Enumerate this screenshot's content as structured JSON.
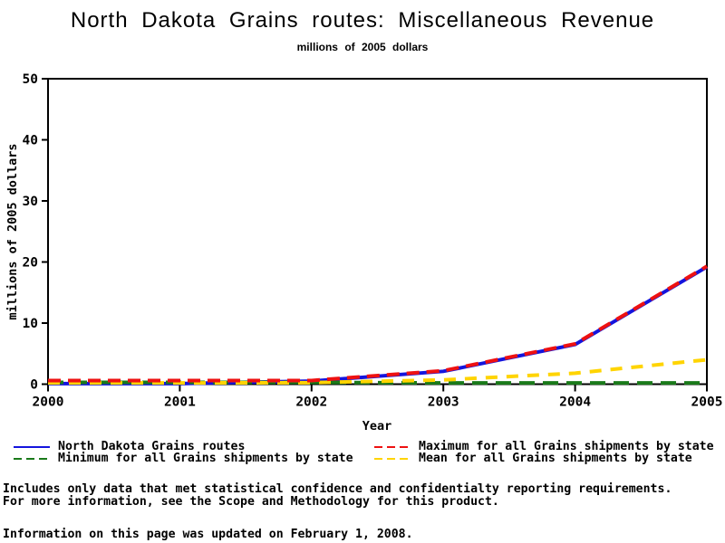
{
  "chart_data": {
    "type": "line",
    "title": "North Dakota Grains routes: Miscellaneous Revenue",
    "subtitle": "millions of 2005 dollars",
    "xlabel": "Year",
    "ylabel": "millions of 2005 dollars",
    "ylim": [
      0,
      50
    ],
    "y_ticks": [
      0,
      10,
      20,
      30,
      40,
      50
    ],
    "categories": [
      2000,
      2001,
      2002,
      2003,
      2004,
      2005
    ],
    "grid": false,
    "legend_position": "bottom",
    "series": [
      {
        "name": "North Dakota Grains routes",
        "color": "#1414dd",
        "style": "solid",
        "values": [
          0.1,
          0.1,
          0.5,
          2.1,
          6.5,
          19.2
        ]
      },
      {
        "name": "Maximum for all Grains shipments by state",
        "color": "#ee1111",
        "style": "dashed",
        "values": [
          0.6,
          0.6,
          0.6,
          2.2,
          6.6,
          19.3
        ]
      },
      {
        "name": "Minimum for all Grains shipments by state",
        "color": "#1a7a1a",
        "style": "dashed",
        "values": [
          0.3,
          0.3,
          0.3,
          0.2,
          0.2,
          0.2
        ]
      },
      {
        "name": "Mean for all Grains shipments by state",
        "color": "#ffd400",
        "style": "dashed",
        "values": [
          0.2,
          0.2,
          0.25,
          0.7,
          1.8,
          4.0
        ]
      }
    ]
  },
  "footer": {
    "note1": "Includes only data that met statistical confidence and confidentialty reporting requirements.",
    "note2": "For more information, see the Scope and Methodology for this product.",
    "updated": "Information on this page was updated on February 1, 2008."
  }
}
